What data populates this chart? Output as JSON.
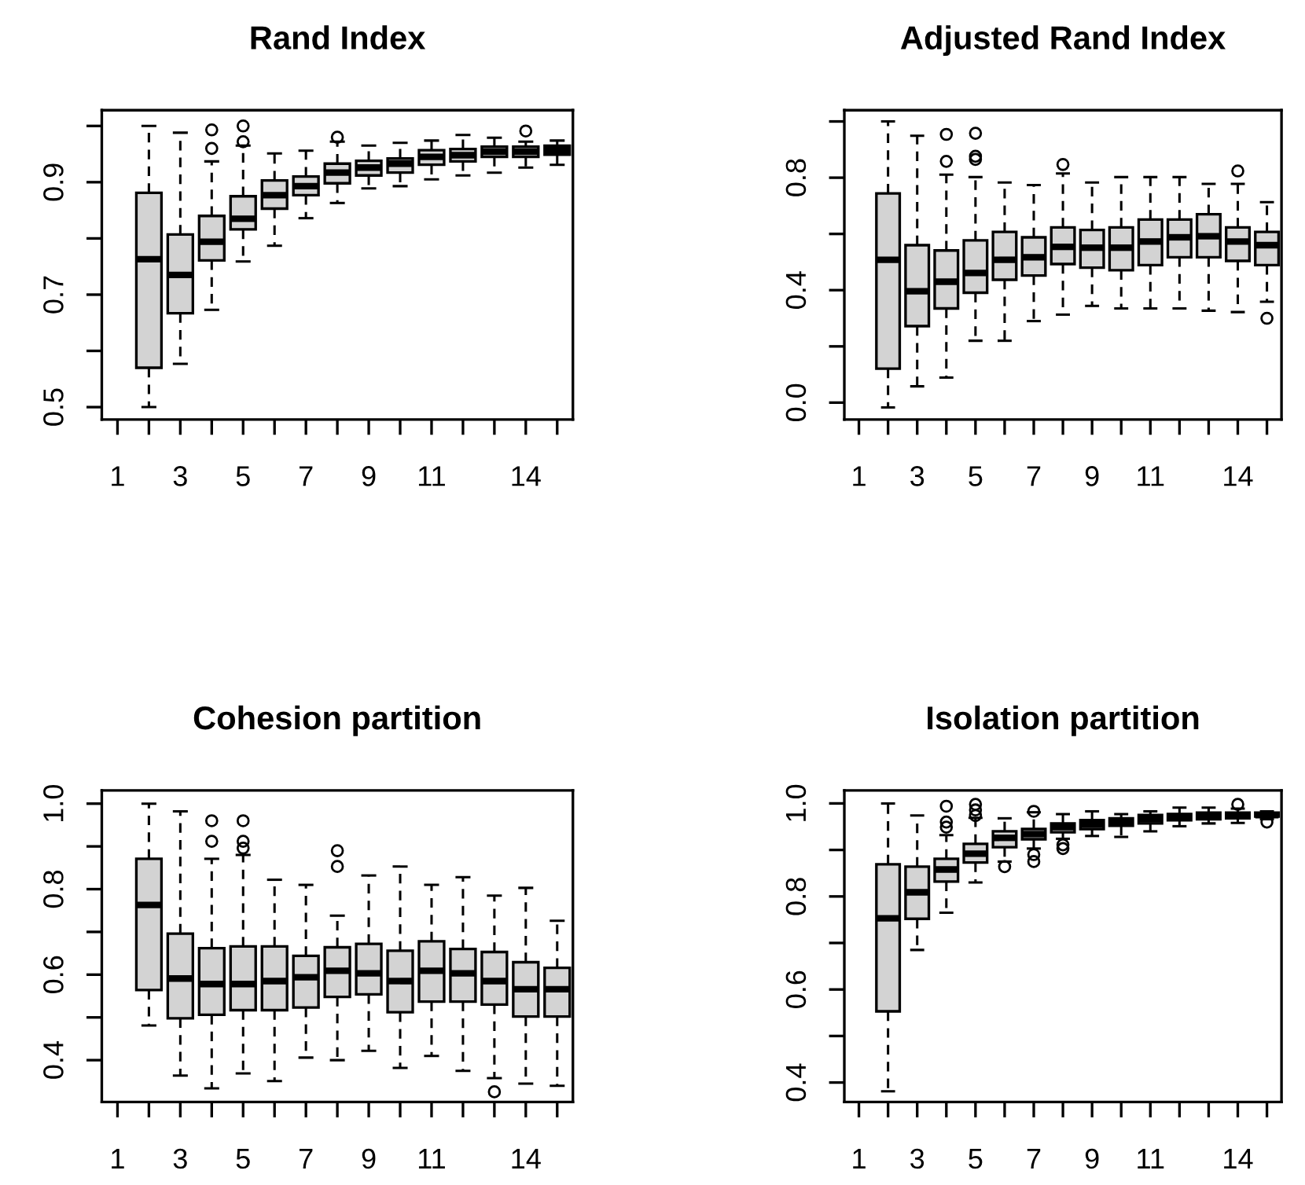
{
  "chart_data": [
    {
      "type": "box",
      "title": "Rand Index",
      "color": "#d3d3d3",
      "categories": [
        "1",
        null,
        "3",
        null,
        "5",
        null,
        "7",
        null,
        "9",
        null,
        "11",
        null,
        null,
        "14",
        null
      ],
      "ylim": [
        0.478,
        1.028
      ],
      "yticks": [
        0.5,
        {
          "value": 0.6,
          "label": null
        },
        0.7,
        {
          "value": 0.8,
          "label": null
        },
        0.9,
        {
          "value": 1.0,
          "label": null
        }
      ],
      "boxes": [
        null,
        {
          "low": 0.5,
          "q1": 0.57,
          "median": 0.763,
          "q3": 0.881,
          "high": 1.0
        },
        {
          "low": 0.577,
          "q1": 0.667,
          "median": 0.735,
          "q3": 0.807,
          "high": 0.988
        },
        {
          "low": 0.673,
          "q1": 0.761,
          "median": 0.794,
          "q3": 0.84,
          "high": 0.937,
          "outliers": [
            0.96,
            0.993
          ]
        },
        {
          "low": 0.759,
          "q1": 0.816,
          "median": 0.835,
          "q3": 0.875,
          "high": 0.965,
          "outliers": [
            0.972,
            1.0
          ]
        },
        {
          "low": 0.787,
          "q1": 0.853,
          "median": 0.877,
          "q3": 0.903,
          "high": 0.951
        },
        {
          "low": 0.836,
          "q1": 0.877,
          "median": 0.893,
          "q3": 0.91,
          "high": 0.956
        },
        {
          "low": 0.863,
          "q1": 0.898,
          "median": 0.917,
          "q3": 0.933,
          "high": 0.972,
          "outliers": [
            0.98
          ]
        },
        {
          "low": 0.889,
          "q1": 0.912,
          "median": 0.926,
          "q3": 0.938,
          "high": 0.965
        },
        {
          "low": 0.893,
          "q1": 0.917,
          "median": 0.933,
          "q3": 0.942,
          "high": 0.97
        },
        {
          "low": 0.905,
          "q1": 0.931,
          "median": 0.945,
          "q3": 0.957,
          "high": 0.974
        },
        {
          "low": 0.912,
          "q1": 0.937,
          "median": 0.948,
          "q3": 0.959,
          "high": 0.984
        },
        {
          "low": 0.917,
          "q1": 0.945,
          "median": 0.954,
          "q3": 0.963,
          "high": 0.979
        },
        {
          "low": 0.926,
          "q1": 0.945,
          "median": 0.954,
          "q3": 0.963,
          "high": 0.972,
          "outliers": [
            0.991
          ]
        },
        {
          "low": 0.931,
          "q1": 0.949,
          "median": 0.957,
          "q3": 0.965,
          "high": 0.974
        }
      ]
    },
    {
      "type": "box",
      "title": "Adjusted Rand Index",
      "color": "#d3d3d3",
      "categories": [
        "1",
        null,
        "3",
        null,
        "5",
        null,
        "7",
        null,
        "9",
        null,
        "11",
        null,
        null,
        "14",
        null
      ],
      "ylim": [
        -0.06,
        1.04
      ],
      "yticks": [
        {
          "value": 0,
          "label": "0.0"
        },
        {
          "value": 0.2,
          "label": null
        },
        0.4,
        {
          "value": 0.6,
          "label": null
        },
        0.8,
        {
          "value": 1.0,
          "label": null
        }
      ],
      "boxes": [
        null,
        {
          "low": -0.017,
          "q1": 0.121,
          "median": 0.508,
          "q3": 0.744,
          "high": 1.0
        },
        {
          "low": 0.058,
          "q1": 0.272,
          "median": 0.396,
          "q3": 0.56,
          "high": 0.949
        },
        {
          "low": 0.089,
          "q1": 0.335,
          "median": 0.43,
          "q3": 0.541,
          "high": 0.811,
          "outliers": [
            0.858,
            0.954
          ]
        },
        {
          "low": 0.22,
          "q1": 0.391,
          "median": 0.461,
          "q3": 0.577,
          "high": 0.802,
          "outliers": [
            0.865,
            0.876,
            0.958
          ]
        },
        {
          "low": 0.22,
          "q1": 0.437,
          "median": 0.508,
          "q3": 0.607,
          "high": 0.783
        },
        {
          "low": 0.29,
          "q1": 0.452,
          "median": 0.517,
          "q3": 0.588,
          "high": 0.774
        },
        {
          "low": 0.313,
          "q1": 0.493,
          "median": 0.554,
          "q3": 0.623,
          "high": 0.815,
          "outliers": [
            0.847
          ]
        },
        {
          "low": 0.344,
          "q1": 0.48,
          "median": 0.551,
          "q3": 0.614,
          "high": 0.783
        },
        {
          "low": 0.335,
          "q1": 0.471,
          "median": 0.551,
          "q3": 0.623,
          "high": 0.802
        },
        {
          "low": 0.335,
          "q1": 0.489,
          "median": 0.573,
          "q3": 0.651,
          "high": 0.802
        },
        {
          "low": 0.335,
          "q1": 0.517,
          "median": 0.588,
          "q3": 0.651,
          "high": 0.802
        },
        {
          "low": 0.327,
          "q1": 0.517,
          "median": 0.592,
          "q3": 0.67,
          "high": 0.778
        },
        {
          "low": 0.322,
          "q1": 0.504,
          "median": 0.573,
          "q3": 0.623,
          "high": 0.778,
          "outliers": [
            0.824
          ]
        },
        {
          "low": 0.359,
          "q1": 0.489,
          "median": 0.56,
          "q3": 0.607,
          "high": 0.713,
          "outliers": [
            0.3
          ]
        }
      ]
    },
    {
      "type": "box",
      "title": "Cohesion partition",
      "color": "#d3d3d3",
      "categories": [
        "1",
        null,
        "3",
        null,
        "5",
        null,
        "7",
        null,
        "9",
        null,
        "11",
        null,
        null,
        "14",
        null
      ],
      "ylim": [
        0.302,
        1.031
      ],
      "yticks": [
        0.4,
        {
          "value": 0.5,
          "label": null
        },
        0.6,
        {
          "value": 0.7,
          "label": null
        },
        0.8,
        {
          "value": 0.9,
          "label": null
        },
        {
          "value": 1,
          "label": "1.0"
        }
      ],
      "boxes": [
        null,
        {
          "low": 0.481,
          "q1": 0.564,
          "median": 0.763,
          "q3": 0.871,
          "high": 1.0
        },
        {
          "low": 0.364,
          "q1": 0.498,
          "median": 0.591,
          "q3": 0.696,
          "high": 0.982
        },
        {
          "low": 0.334,
          "q1": 0.506,
          "median": 0.578,
          "q3": 0.662,
          "high": 0.871,
          "outliers": [
            0.912,
            0.96
          ]
        },
        {
          "low": 0.369,
          "q1": 0.517,
          "median": 0.578,
          "q3": 0.666,
          "high": 0.88,
          "outliers": [
            0.896,
            0.912,
            0.96
          ]
        },
        {
          "low": 0.351,
          "q1": 0.517,
          "median": 0.585,
          "q3": 0.666,
          "high": 0.822
        },
        {
          "low": 0.406,
          "q1": 0.523,
          "median": 0.594,
          "q3": 0.644,
          "high": 0.81
        },
        {
          "low": 0.4,
          "q1": 0.548,
          "median": 0.609,
          "q3": 0.664,
          "high": 0.738,
          "outliers": [
            0.853,
            0.89
          ]
        },
        {
          "low": 0.422,
          "q1": 0.554,
          "median": 0.603,
          "q3": 0.672,
          "high": 0.832
        },
        {
          "low": 0.382,
          "q1": 0.512,
          "median": 0.585,
          "q3": 0.656,
          "high": 0.853
        },
        {
          "low": 0.41,
          "q1": 0.537,
          "median": 0.609,
          "q3": 0.678,
          "high": 0.81
        },
        {
          "low": 0.375,
          "q1": 0.537,
          "median": 0.603,
          "q3": 0.66,
          "high": 0.828
        },
        {
          "low": 0.358,
          "q1": 0.53,
          "median": 0.585,
          "q3": 0.653,
          "high": 0.785,
          "outliers": [
            0.326
          ]
        },
        {
          "low": 0.345,
          "q1": 0.502,
          "median": 0.566,
          "q3": 0.629,
          "high": 0.803
        },
        {
          "low": 0.34,
          "q1": 0.502,
          "median": 0.566,
          "q3": 0.616,
          "high": 0.726
        }
      ]
    },
    {
      "type": "box",
      "title": "Isolation partition",
      "color": "#d3d3d3",
      "categories": [
        "1",
        null,
        "3",
        null,
        "5",
        null,
        "7",
        null,
        "9",
        null,
        "11",
        null,
        null,
        "14",
        null
      ],
      "ylim": [
        0.358,
        1.028
      ],
      "yticks": [
        0.4,
        {
          "value": 0.5,
          "label": null
        },
        0.6,
        {
          "value": 0.7,
          "label": null
        },
        0.8,
        {
          "value": 0.9,
          "label": null
        },
        {
          "value": 1,
          "label": "1.0"
        }
      ],
      "boxes": [
        null,
        {
          "low": 0.381,
          "q1": 0.553,
          "median": 0.753,
          "q3": 0.869,
          "high": 1.0
        },
        {
          "low": 0.685,
          "q1": 0.752,
          "median": 0.809,
          "q3": 0.864,
          "high": 0.974
        },
        {
          "low": 0.765,
          "q1": 0.832,
          "median": 0.858,
          "q3": 0.881,
          "high": 0.932,
          "outliers": [
            0.949,
            0.96,
            0.994
          ]
        },
        {
          "low": 0.83,
          "q1": 0.873,
          "median": 0.892,
          "q3": 0.913,
          "high": 0.969,
          "outliers": [
            0.974,
            0.986,
            0.998
          ]
        },
        {
          "low": 0.875,
          "q1": 0.906,
          "median": 0.926,
          "q3": 0.94,
          "high": 0.968,
          "outliers": [
            0.864
          ]
        },
        {
          "low": 0.903,
          "q1": 0.923,
          "median": 0.934,
          "q3": 0.945,
          "high": 0.981,
          "outliers": [
            0.875,
            0.89,
            0.983
          ]
        },
        {
          "low": 0.924,
          "q1": 0.938,
          "median": 0.949,
          "q3": 0.957,
          "high": 0.977,
          "outliers": [
            0.903,
            0.911
          ]
        },
        {
          "low": 0.93,
          "q1": 0.945,
          "median": 0.955,
          "q3": 0.964,
          "high": 0.983
        },
        {
          "low": 0.928,
          "q1": 0.952,
          "median": 0.96,
          "q3": 0.968,
          "high": 0.977
        },
        {
          "low": 0.94,
          "q1": 0.957,
          "median": 0.966,
          "q3": 0.975,
          "high": 0.983
        },
        {
          "low": 0.951,
          "q1": 0.964,
          "median": 0.972,
          "q3": 0.977,
          "high": 0.991
        },
        {
          "low": 0.957,
          "q1": 0.966,
          "median": 0.974,
          "q3": 0.98,
          "high": 0.991
        },
        {
          "low": 0.958,
          "q1": 0.968,
          "median": 0.974,
          "q3": 0.98,
          "high": 0.989,
          "outliers": [
            0.998
          ]
        },
        {
          "low": 0.966,
          "q1": 0.972,
          "median": 0.975,
          "q3": 0.98,
          "high": 0.983,
          "outliers": [
            0.96
          ]
        }
      ]
    }
  ]
}
